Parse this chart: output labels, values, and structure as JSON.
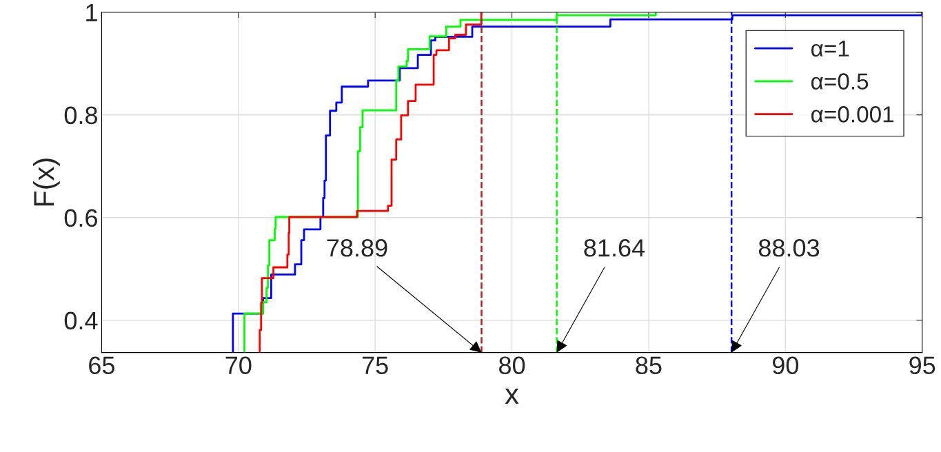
{
  "chart_data": {
    "type": "step",
    "xlabel": "x",
    "ylabel": "F(x)",
    "xlim": [
      65,
      95
    ],
    "xticks": [
      65,
      70,
      75,
      80,
      85,
      90,
      95
    ],
    "ylim": [
      0.337,
      1
    ],
    "yticks": [
      0.4,
      0.6,
      0.8,
      1
    ],
    "grid": true,
    "legend": "top right",
    "line_style": "solid",
    "series": [
      {
        "name": "α=1",
        "color": "#0000ff",
        "x": [
          69.8,
          69.8,
          70.9,
          71.2,
          72.07,
          72.3,
          72.4,
          73.0,
          73.1,
          73.15,
          73.2,
          73.35,
          73.58,
          73.78,
          74.74,
          75.9,
          76.56,
          77.04,
          77.2,
          78.55,
          83.6,
          88.06,
          95
        ],
        "values": [
          0.337,
          0.413,
          0.443,
          0.489,
          0.509,
          0.556,
          0.577,
          0.601,
          0.638,
          0.672,
          0.76,
          0.808,
          0.824,
          0.855,
          0.867,
          0.891,
          0.917,
          0.945,
          0.952,
          0.972,
          0.986,
          0.994,
          1.0
        ]
      },
      {
        "name": "α=0.5",
        "color": "#00ff00",
        "x": [
          70.22,
          70.22,
          70.9,
          71.03,
          71.08,
          71.13,
          71.33,
          71.36,
          74.37,
          74.45,
          74.54,
          75.77,
          75.85,
          76.15,
          76.2,
          76.99,
          77.6,
          78.12,
          81.63,
          85.26
        ],
        "values": [
          0.337,
          0.413,
          0.435,
          0.463,
          0.507,
          0.556,
          0.578,
          0.601,
          0.729,
          0.776,
          0.809,
          0.867,
          0.894,
          0.905,
          0.928,
          0.953,
          0.972,
          0.985,
          0.994,
          1.0
        ]
      },
      {
        "name": "α=0.001",
        "color": "#ff0000",
        "x": [
          70.78,
          70.78,
          70.83,
          70.86,
          71.28,
          71.79,
          71.84,
          71.86,
          74.34,
          75.47,
          75.6,
          75.77,
          75.95,
          76.2,
          76.48,
          77.14,
          77.24,
          77.7,
          77.93,
          78.32,
          78.88
        ],
        "values": [
          0.337,
          0.381,
          0.434,
          0.482,
          0.503,
          0.528,
          0.57,
          0.601,
          0.613,
          0.623,
          0.713,
          0.752,
          0.799,
          0.827,
          0.859,
          0.917,
          0.926,
          0.949,
          0.956,
          0.976,
          1.0
        ]
      }
    ],
    "ref_lines": [
      {
        "axis": "x",
        "value": 78.89,
        "color": "#b22222",
        "line_style": "dashed"
      },
      {
        "axis": "x",
        "value": 81.64,
        "color": "#00ff00",
        "line_style": "dashed"
      },
      {
        "axis": "x",
        "value": 88.03,
        "color": "#0000ff",
        "line_style": "dashed"
      }
    ],
    "annotations": [
      {
        "text": "78.89",
        "x": 78.89,
        "y": 0.337
      },
      {
        "text": "81.64",
        "x": 81.64,
        "y": 0.337
      },
      {
        "text": "88.03",
        "x": 88.03,
        "y": 0.337
      }
    ]
  }
}
